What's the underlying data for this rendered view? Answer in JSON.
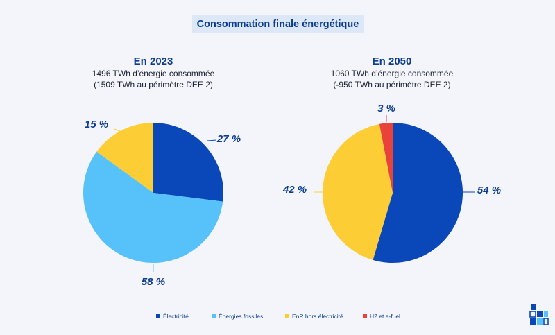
{
  "title": "Consommation finale énergétique",
  "colors": {
    "electricite": "#0a47b8",
    "fossiles": "#57c2fa",
    "enr": "#fdcd36",
    "h2": "#e8423b"
  },
  "chart_data": [
    {
      "type": "pie",
      "title": "En 2023",
      "subtitle_lines": [
        "1496 TWh d’énergie consommée",
        "(1509 TWh au périmètre DEE 2)"
      ],
      "categories": [
        "Électricité",
        "Énergies fossiles",
        "EnR hors électricité"
      ],
      "values": [
        27,
        58,
        15
      ],
      "labels": [
        "27 %",
        "58 %",
        "15 %"
      ],
      "color_keys": [
        "electricite",
        "fossiles",
        "enr"
      ]
    },
    {
      "type": "pie",
      "title": "En 2050",
      "subtitle_lines": [
        "1060 TWh d’énergie consommée",
        "(-950 TWh au périmètre DEE 2)"
      ],
      "categories": [
        "Électricité",
        "EnR hors électricité",
        "H2 et e-fuel"
      ],
      "values": [
        54,
        42,
        3
      ],
      "labels": [
        "54 %",
        "42 %",
        "3 %"
      ],
      "color_keys": [
        "electricite",
        "enr",
        "h2"
      ]
    }
  ],
  "legend": [
    {
      "label": "Électricité",
      "color_key": "electricite"
    },
    {
      "label": "Énergies fossiles",
      "color_key": "fossiles"
    },
    {
      "label": "EnR hors électricité",
      "color_key": "enr"
    },
    {
      "label": "H2 et e-fuel",
      "color_key": "h2"
    }
  ],
  "logo_icon": "building-blocks-icon"
}
